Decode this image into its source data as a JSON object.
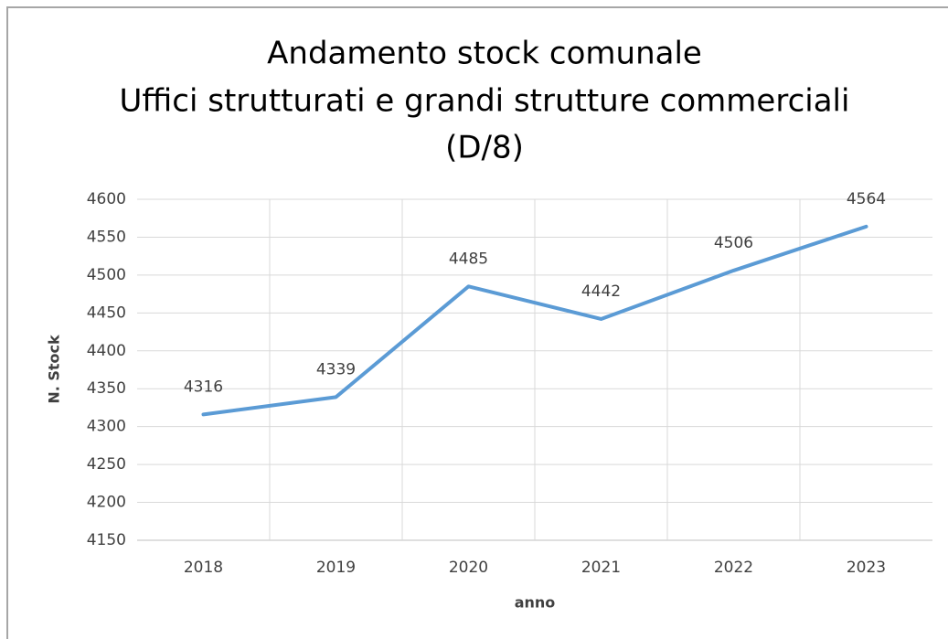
{
  "chart_data": {
    "type": "line",
    "title": [
      "Andamento stock comunale",
      "Uffici strutturati e grandi strutture commerciali",
      "(D/8)"
    ],
    "x_label": "anno",
    "y_label": "N. Stock",
    "categories": [
      "2018",
      "2019",
      "2020",
      "2021",
      "2022",
      "2023"
    ],
    "series": [
      {
        "color": "#5b9bd5",
        "values": [
          4316,
          4339,
          4485,
          4442,
          4506,
          4564
        ]
      }
    ],
    "ylim": [
      4150,
      4600
    ],
    "yticks": [
      4150,
      4200,
      4250,
      4300,
      4350,
      4400,
      4450,
      4500,
      4550,
      4600
    ],
    "grid": true
  }
}
